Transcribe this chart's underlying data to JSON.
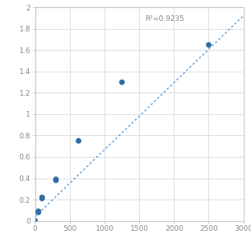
{
  "x_data": [
    0,
    47,
    47,
    100,
    100,
    300,
    300,
    625,
    1250,
    2500
  ],
  "y_data": [
    0.0,
    0.08,
    0.09,
    0.21,
    0.22,
    0.38,
    0.39,
    0.75,
    1.3,
    1.65
  ],
  "trendline_x": [
    0,
    3000
  ],
  "trendline_slope": 0.000628,
  "trendline_intercept": 0.04,
  "r2_text": "R²=0.9235",
  "r2_x": 1580,
  "r2_y": 1.93,
  "xlim": [
    0,
    3000
  ],
  "ylim": [
    0,
    2
  ],
  "xticks": [
    0,
    500,
    1000,
    1500,
    2000,
    2500,
    3000
  ],
  "yticks": [
    0,
    0.2,
    0.4,
    0.6,
    0.8,
    1.0,
    1.2,
    1.4,
    1.6,
    1.8,
    2.0
  ],
  "dot_color": "#2e6da4",
  "line_color": "#5b9bd5",
  "background_color": "#ffffff",
  "grid_color": "#d9d9d9",
  "marker_size": 5,
  "figsize": [
    3.12,
    3.12
  ],
  "dpi": 100
}
